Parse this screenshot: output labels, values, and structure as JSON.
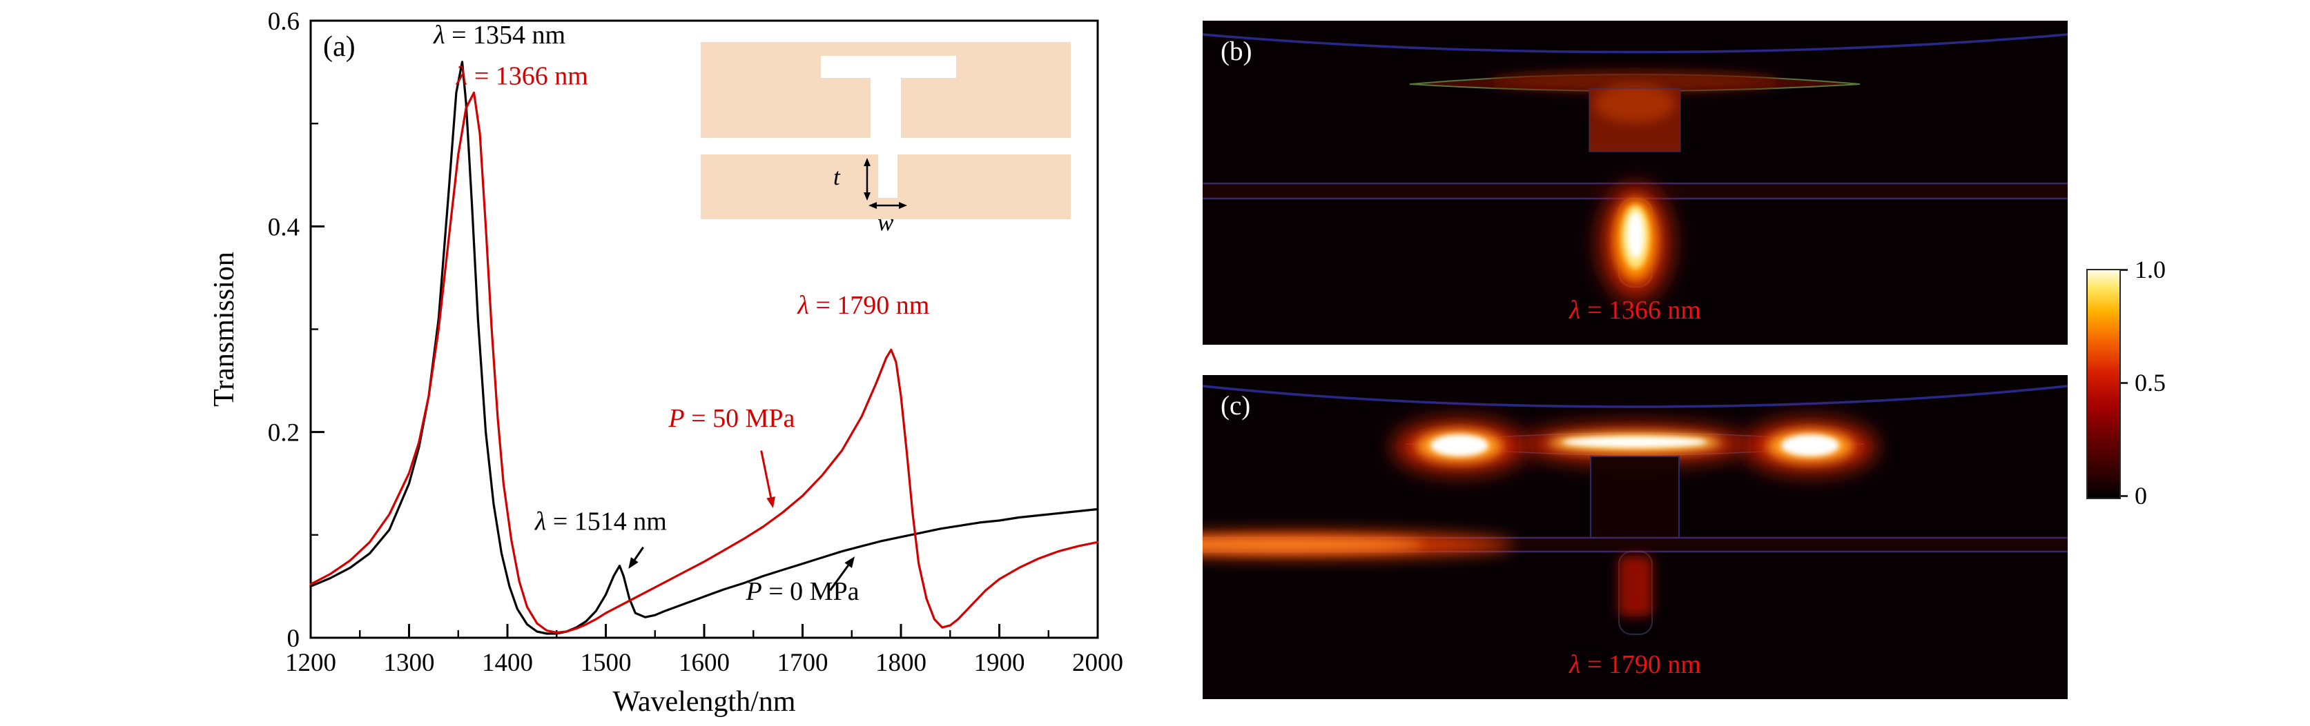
{
  "colors": {
    "curve_black": "#000000",
    "curve_red": "#d40000",
    "panel_label_red": "#ea1212",
    "inset_slab": "#f7dbc0",
    "field_background": "#070104"
  },
  "panel_a": {
    "tag": "(a)",
    "inset": {
      "t": "t",
      "w": "w"
    }
  },
  "panel_b": {
    "tag": "(b)",
    "label_var": "λ",
    "label_rest": " = 1366 nm"
  },
  "panel_c": {
    "tag": "(c)",
    "label_var": "λ",
    "label_rest": " = 1790 nm"
  },
  "colorbar": {
    "tick_labels": [
      "1.0",
      "0.5",
      "0"
    ]
  },
  "chart_data": {
    "type": "line",
    "title": "",
    "xlabel": "Wavelength/nm",
    "ylabel": "Transmission",
    "xlim": [
      1200,
      2000
    ],
    "ylim": [
      0,
      0.6
    ],
    "x_ticks": [
      1200,
      1300,
      1400,
      1500,
      1600,
      1700,
      1800,
      1900,
      2000
    ],
    "y_ticks": [
      0,
      0.2,
      0.4,
      0.6
    ],
    "y_minor_ticks": [
      0.1,
      0.3,
      0.5
    ],
    "grid": false,
    "legend_position": "none",
    "series": [
      {
        "name": "P = 0 MPa",
        "color": "#000000",
        "x": [
          1200,
          1220,
          1240,
          1260,
          1280,
          1300,
          1310,
          1320,
          1330,
          1340,
          1348,
          1354,
          1358,
          1364,
          1370,
          1378,
          1386,
          1394,
          1402,
          1410,
          1420,
          1430,
          1440,
          1450,
          1460,
          1470,
          1480,
          1490,
          1500,
          1508,
          1514,
          1518,
          1524,
          1530,
          1540,
          1550,
          1560,
          1580,
          1600,
          1620,
          1640,
          1660,
          1680,
          1700,
          1720,
          1740,
          1760,
          1780,
          1800,
          1820,
          1840,
          1860,
          1880,
          1900,
          1920,
          1940,
          1960,
          1980,
          2000
        ],
        "y": [
          0.05,
          0.058,
          0.068,
          0.082,
          0.105,
          0.15,
          0.185,
          0.235,
          0.31,
          0.43,
          0.53,
          0.56,
          0.52,
          0.42,
          0.31,
          0.2,
          0.13,
          0.082,
          0.05,
          0.028,
          0.013,
          0.006,
          0.004,
          0.004,
          0.006,
          0.01,
          0.016,
          0.026,
          0.042,
          0.06,
          0.07,
          0.06,
          0.038,
          0.024,
          0.02,
          0.022,
          0.026,
          0.033,
          0.04,
          0.047,
          0.053,
          0.06,
          0.066,
          0.072,
          0.078,
          0.084,
          0.089,
          0.094,
          0.098,
          0.102,
          0.106,
          0.109,
          0.112,
          0.114,
          0.117,
          0.119,
          0.121,
          0.123,
          0.125
        ]
      },
      {
        "name": "P = 50 MPa",
        "color": "#d40000",
        "x": [
          1200,
          1220,
          1240,
          1260,
          1280,
          1300,
          1310,
          1320,
          1330,
          1340,
          1350,
          1358,
          1366,
          1372,
          1378,
          1384,
          1390,
          1396,
          1404,
          1412,
          1420,
          1430,
          1440,
          1450,
          1460,
          1470,
          1480,
          1490,
          1500,
          1520,
          1540,
          1560,
          1580,
          1600,
          1620,
          1640,
          1660,
          1680,
          1700,
          1720,
          1740,
          1760,
          1775,
          1785,
          1790,
          1795,
          1800,
          1806,
          1812,
          1818,
          1826,
          1834,
          1842,
          1850,
          1858,
          1866,
          1876,
          1886,
          1900,
          1920,
          1940,
          1960,
          1980,
          2000
        ],
        "y": [
          0.052,
          0.062,
          0.075,
          0.093,
          0.12,
          0.16,
          0.19,
          0.235,
          0.3,
          0.385,
          0.47,
          0.515,
          0.53,
          0.49,
          0.4,
          0.3,
          0.215,
          0.15,
          0.095,
          0.055,
          0.03,
          0.014,
          0.007,
          0.005,
          0.006,
          0.009,
          0.013,
          0.018,
          0.024,
          0.034,
          0.044,
          0.054,
          0.064,
          0.074,
          0.085,
          0.096,
          0.108,
          0.122,
          0.138,
          0.158,
          0.182,
          0.215,
          0.248,
          0.272,
          0.28,
          0.268,
          0.235,
          0.18,
          0.12,
          0.072,
          0.038,
          0.018,
          0.01,
          0.012,
          0.018,
          0.026,
          0.036,
          0.046,
          0.057,
          0.068,
          0.077,
          0.084,
          0.089,
          0.093
        ]
      }
    ],
    "annotations": [
      {
        "var": "λ",
        "rest": " = 1354 nm",
        "color": "#000000",
        "x": 1392,
        "y": 0.578
      },
      {
        "var": "λ",
        "rest": " = 1366 nm",
        "color": "#d40000",
        "x": 1415,
        "y": 0.538
      },
      {
        "var": "λ",
        "rest": " = 1790 nm",
        "color": "#d40000",
        "x": 1762,
        "y": 0.315
      },
      {
        "var": "P",
        "rest": " = 50 MPa",
        "color": "#d40000",
        "x": 1628,
        "y": 0.205
      },
      {
        "var": "λ",
        "rest": " = 1514 nm",
        "color": "#000000",
        "x": 1495,
        "y": 0.105
      },
      {
        "var": "P",
        "rest": " = 0 MPa",
        "color": "#000000",
        "x": 1700,
        "y": 0.037
      }
    ],
    "arrows": [
      {
        "x1": 1658,
        "y1": 0.182,
        "x2": 1670,
        "y2": 0.126,
        "color": "#d40000"
      },
      {
        "x1": 1538,
        "y1": 0.088,
        "x2": 1523,
        "y2": 0.067,
        "color": "#000000"
      },
      {
        "x1": 1728,
        "y1": 0.046,
        "x2": 1753,
        "y2": 0.079,
        "color": "#000000"
      }
    ]
  }
}
